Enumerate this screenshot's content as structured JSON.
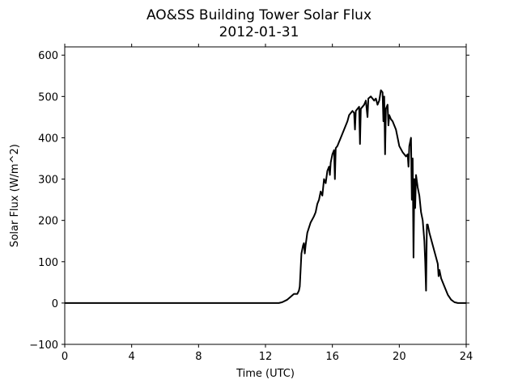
{
  "chart_data": {
    "type": "line",
    "title": "AO&SS Building Tower Solar Flux",
    "subtitle": "2012-01-31",
    "x_label": "Time (UTC)",
    "y_label": "Solar Flux (W/m^2)",
    "xlim": [
      0,
      24
    ],
    "xticks": [
      0,
      4,
      8,
      12,
      16,
      20,
      24
    ],
    "ylim": [
      -100,
      620
    ],
    "yticks": [
      {
        "value": -100,
        "label": "−100"
      },
      0,
      100,
      200,
      300,
      400,
      500,
      600
    ],
    "grid": false,
    "series": [
      {
        "color": "#000000",
        "x": [
          0,
          12.8,
          13.0,
          13.3,
          13.5,
          13.7,
          13.9,
          14.0,
          14.05,
          14.1,
          14.15,
          14.25,
          14.3,
          14.35,
          14.4,
          14.5,
          14.7,
          14.9,
          15.0,
          15.1,
          15.2,
          15.3,
          15.4,
          15.5,
          15.6,
          15.7,
          15.8,
          15.85,
          15.9,
          16.0,
          16.1,
          16.15,
          16.2,
          16.3,
          16.4,
          16.5,
          16.7,
          16.9,
          17.0,
          17.2,
          17.3,
          17.35,
          17.4,
          17.5,
          17.6,
          17.65,
          17.7,
          17.9,
          18.0,
          18.1,
          18.15,
          18.3,
          18.5,
          18.6,
          18.7,
          18.8,
          18.9,
          19.0,
          19.05,
          19.1,
          19.15,
          19.2,
          19.3,
          19.35,
          19.4,
          19.5,
          19.6,
          19.7,
          19.8,
          19.9,
          20.0,
          20.2,
          20.4,
          20.5,
          20.55,
          20.6,
          20.7,
          20.75,
          20.8,
          20.85,
          20.9,
          20.95,
          21.0,
          21.1,
          21.2,
          21.3,
          21.4,
          21.5,
          21.55,
          21.6,
          21.65,
          21.7,
          21.8,
          22.0,
          22.2,
          22.3,
          22.35,
          22.4,
          22.5,
          22.7,
          22.9,
          23.1,
          23.3,
          23.5,
          24
        ],
        "values": [
          0,
          0,
          2,
          8,
          15,
          22,
          22,
          30,
          40,
          80,
          120,
          140,
          145,
          120,
          140,
          170,
          195,
          210,
          220,
          240,
          250,
          270,
          260,
          300,
          290,
          320,
          330,
          310,
          340,
          360,
          370,
          300,
          375,
          380,
          390,
          400,
          420,
          440,
          455,
          465,
          460,
          420,
          465,
          470,
          475,
          385,
          470,
          480,
          490,
          450,
          495,
          500,
          490,
          495,
          480,
          490,
          515,
          510,
          440,
          500,
          360,
          470,
          480,
          430,
          455,
          445,
          440,
          430,
          420,
          400,
          380,
          365,
          355,
          360,
          330,
          380,
          400,
          250,
          350,
          110,
          300,
          230,
          310,
          280,
          260,
          220,
          200,
          150,
          100,
          30,
          190,
          190,
          170,
          140,
          110,
          95,
          65,
          80,
          60,
          40,
          20,
          8,
          2,
          0,
          0
        ]
      }
    ]
  }
}
